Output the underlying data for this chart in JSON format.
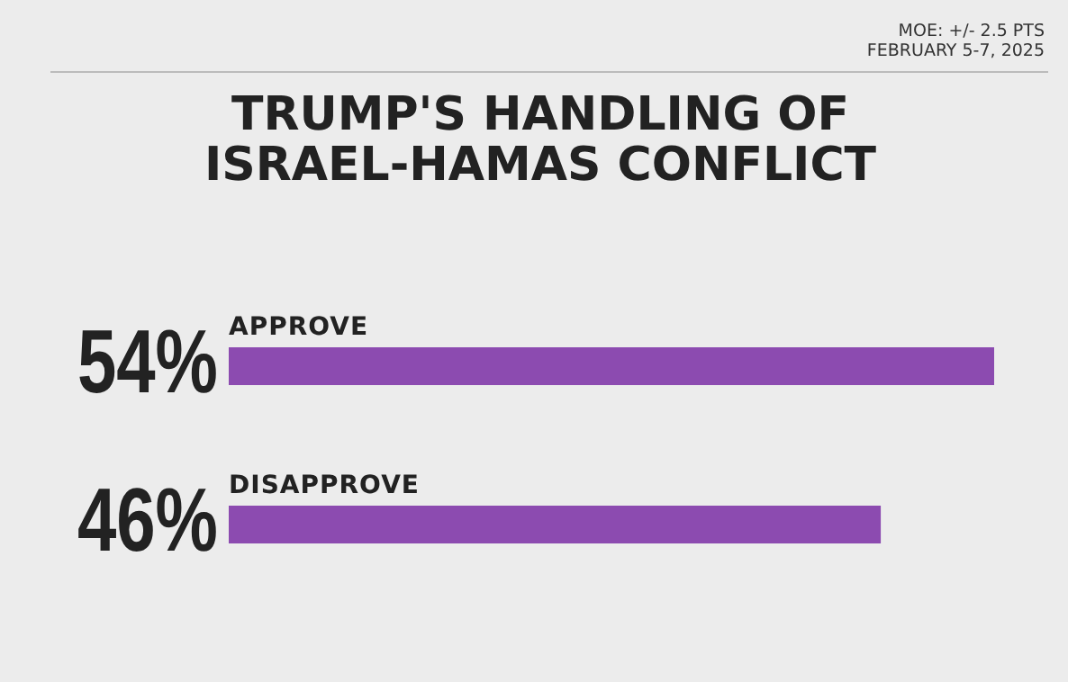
{
  "chart_data": {
    "type": "bar",
    "orientation": "horizontal",
    "title": "TRUMP'S HANDLING OF ISRAEL-HAMAS CONFLICT",
    "annotations": [
      "MOE: +/- 2.5 PTS",
      "FEBRUARY 5-7, 2025"
    ],
    "categories": [
      "APPROVE",
      "DISAPPROVE"
    ],
    "values": [
      54,
      46
    ],
    "value_labels": [
      "54%",
      "46%"
    ],
    "color": "#8c4bb0"
  }
}
